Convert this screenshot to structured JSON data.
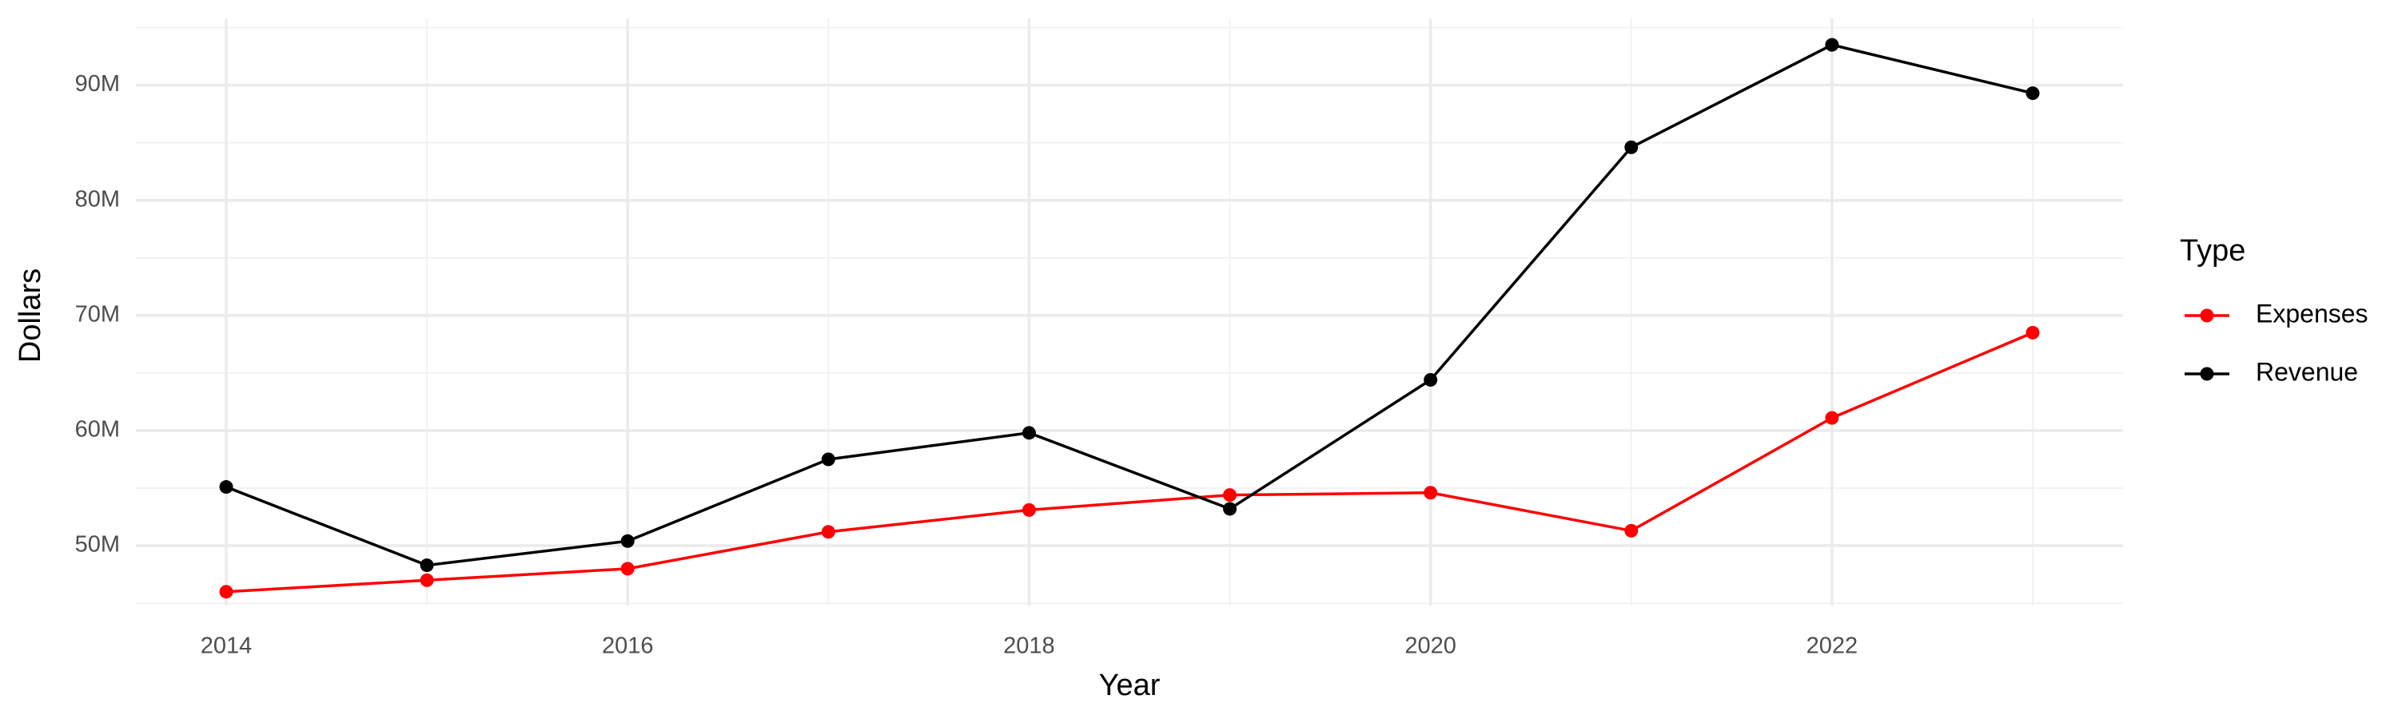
{
  "chart_data": {
    "type": "line",
    "x_label": "Year",
    "y_label": "Dollars",
    "x": [
      2014,
      2015,
      2016,
      2017,
      2018,
      2019,
      2020,
      2021,
      2022,
      2023
    ],
    "series": [
      {
        "name": "Expenses",
        "color": "#ff0000",
        "values": [
          46000000,
          47000000,
          48000000,
          51200000,
          53100000,
          54400000,
          54600000,
          51300000,
          61100000,
          68500000
        ]
      },
      {
        "name": "Revenue",
        "color": "#000000",
        "values": [
          55100000,
          48300000,
          50400000,
          57500000,
          59800000,
          53200000,
          64400000,
          84600000,
          93500000,
          89300000
        ]
      }
    ],
    "xlim": [
      2013.55,
      2023.45
    ],
    "xticks": [
      2014,
      2016,
      2018,
      2020,
      2022
    ],
    "ylim": [
      44800000,
      95800000
    ],
    "yticks": [
      {
        "value": 50000000,
        "label": "50M"
      },
      {
        "value": 60000000,
        "label": "60M"
      },
      {
        "value": 70000000,
        "label": "70M"
      },
      {
        "value": 80000000,
        "label": "80M"
      },
      {
        "value": 90000000,
        "label": "90M"
      }
    ],
    "grid": true,
    "legend_title": "Type",
    "legend_position": "right"
  }
}
